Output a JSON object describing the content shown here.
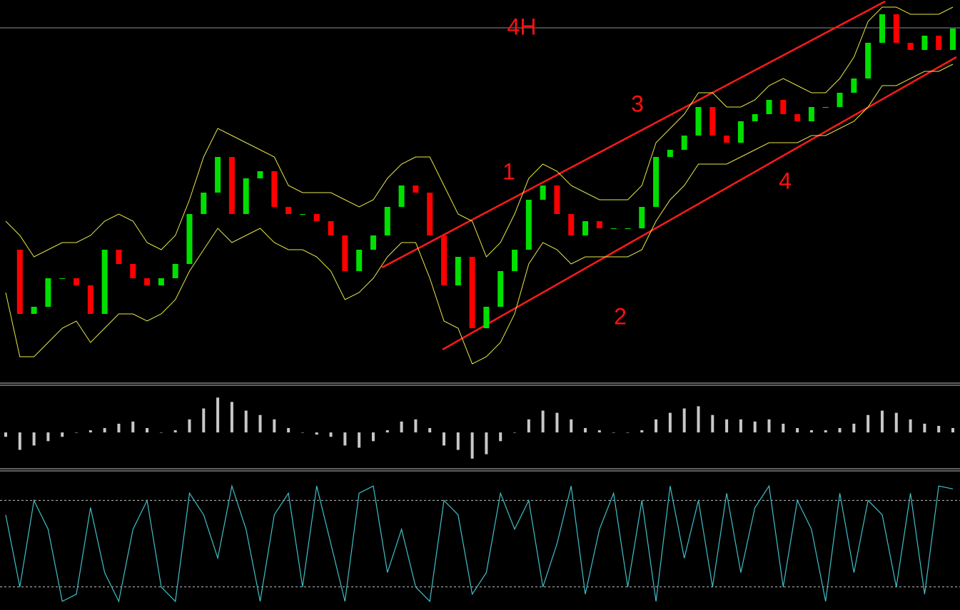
{
  "chart_data": [
    {
      "type": "candlestick",
      "title": "4H",
      "annotations": [
        "1",
        "2",
        "3",
        "4"
      ],
      "closes": [
        32,
        14,
        16,
        24,
        24,
        22,
        14,
        32,
        28,
        24,
        22,
        24,
        28,
        42,
        48,
        58,
        42,
        52,
        54,
        44,
        42,
        42,
        40,
        36,
        26,
        32,
        36,
        44,
        50,
        48,
        36,
        22,
        30,
        10,
        16,
        26,
        32,
        46,
        50,
        42,
        36,
        40,
        38,
        38,
        38,
        44,
        58,
        60,
        64,
        72,
        64,
        62,
        68,
        70,
        74,
        70,
        68,
        72,
        72,
        76,
        80,
        90,
        98,
        90,
        88,
        92,
        88,
        94
      ],
      "upper": [
        40,
        36,
        30,
        32,
        34,
        34,
        36,
        40,
        42,
        40,
        34,
        32,
        36,
        46,
        58,
        66,
        64,
        62,
        60,
        58,
        50,
        48,
        48,
        48,
        46,
        44,
        46,
        52,
        56,
        58,
        58,
        50,
        42,
        40,
        30,
        34,
        42,
        52,
        56,
        54,
        50,
        48,
        46,
        46,
        46,
        50,
        62,
        66,
        70,
        76,
        76,
        72,
        72,
        74,
        78,
        80,
        78,
        76,
        76,
        80,
        86,
        96,
        100,
        100,
        98,
        98,
        98,
        100
      ],
      "lower": [
        20,
        2,
        2,
        6,
        10,
        12,
        6,
        10,
        14,
        14,
        12,
        14,
        18,
        26,
        32,
        38,
        34,
        36,
        38,
        34,
        32,
        32,
        30,
        26,
        18,
        20,
        24,
        30,
        34,
        34,
        24,
        12,
        10,
        0,
        2,
        6,
        14,
        28,
        34,
        32,
        28,
        30,
        30,
        30,
        30,
        32,
        40,
        46,
        50,
        56,
        56,
        56,
        58,
        60,
        62,
        62,
        62,
        64,
        64,
        66,
        68,
        72,
        78,
        78,
        80,
        82,
        82,
        84
      ],
      "up_color": "#00e000",
      "down_color": "#ff0000",
      "band_color": "#e8e84a",
      "ylim": [
        -5,
        102
      ]
    },
    {
      "type": "histogram",
      "color": "#c8c8c8",
      "ylim": [
        -0.8,
        1
      ],
      "values": [
        -0.1,
        -0.4,
        -0.3,
        -0.2,
        -0.1,
        0,
        0.05,
        0.1,
        0.2,
        0.25,
        0.1,
        0,
        0.05,
        0.3,
        0.55,
        0.8,
        0.7,
        0.5,
        0.4,
        0.3,
        0.1,
        0,
        -0.05,
        -0.1,
        -0.3,
        -0.35,
        -0.2,
        0.05,
        0.25,
        0.3,
        0.1,
        -0.3,
        -0.4,
        -0.6,
        -0.5,
        -0.2,
        0,
        0.3,
        0.5,
        0.45,
        0.3,
        0.1,
        0.05,
        0,
        0,
        0.05,
        0.3,
        0.45,
        0.55,
        0.6,
        0.4,
        0.3,
        0.3,
        0.25,
        0.3,
        0.2,
        0.1,
        0.05,
        0.05,
        0.1,
        0.2,
        0.4,
        0.5,
        0.45,
        0.3,
        0.2,
        0.15,
        0.1
      ]
    },
    {
      "type": "line",
      "color": "#40c0c8",
      "ylim": [
        4,
        100
      ],
      "levels": [
        80,
        20
      ],
      "values": [
        70,
        20,
        80,
        60,
        10,
        15,
        75,
        30,
        10,
        60,
        80,
        20,
        10,
        85,
        70,
        40,
        90,
        60,
        10,
        70,
        85,
        20,
        90,
        50,
        10,
        85,
        90,
        30,
        60,
        20,
        10,
        80,
        70,
        15,
        30,
        85,
        60,
        80,
        20,
        50,
        90,
        15,
        60,
        85,
        20,
        80,
        10,
        90,
        40,
        80,
        20,
        85,
        30,
        75,
        90,
        20,
        80,
        60,
        10,
        85,
        30,
        80,
        70,
        20,
        85,
        15,
        90,
        88
      ]
    }
  ]
}
